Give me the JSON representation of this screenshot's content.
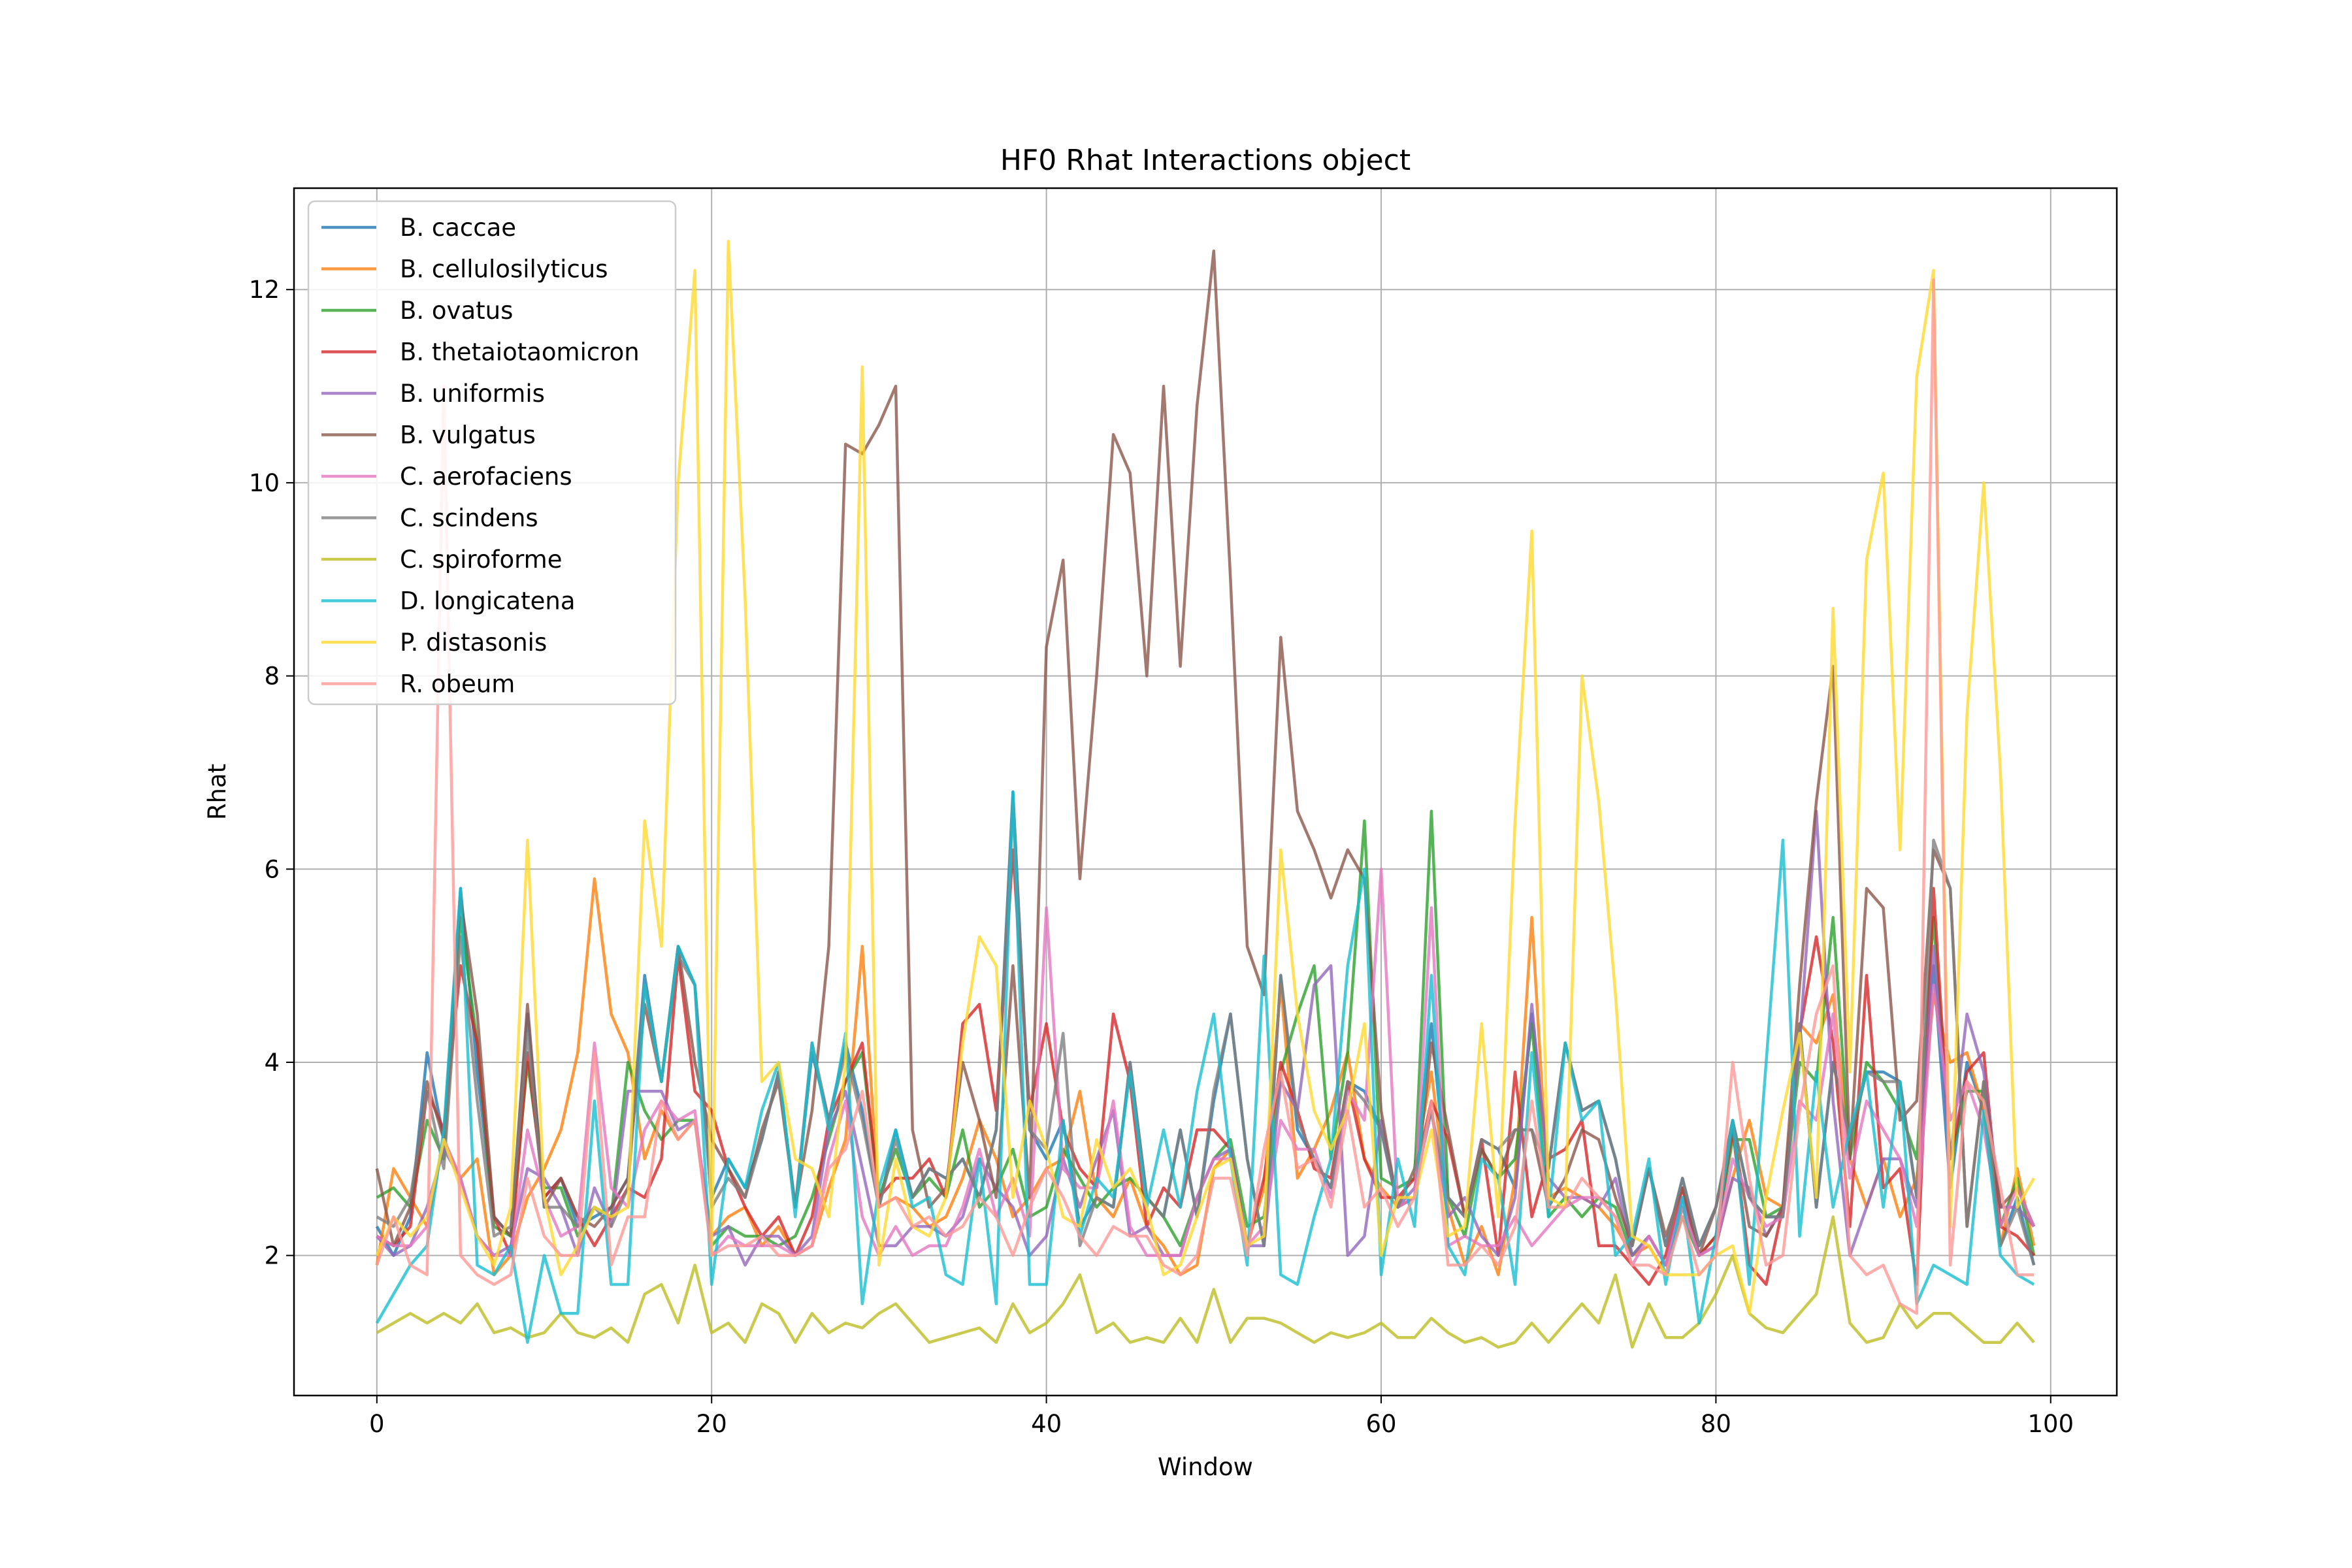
{
  "chart_data": {
    "type": "line",
    "title": "HF0 Rhat Interactions object",
    "xlabel": "Window",
    "ylabel": "Rhat",
    "xlim": [
      -4.95,
      103.95
    ],
    "ylim": [
      0.55,
      13.05
    ],
    "xticks": [
      0,
      20,
      40,
      60,
      80,
      100
    ],
    "yticks": [
      2,
      4,
      6,
      8,
      10,
      12
    ],
    "grid": true,
    "legend_position": "upper-left",
    "series": [
      {
        "name": "B. caccae",
        "color": "#1f77b4",
        "values": [
          2.3,
          2.0,
          2.4,
          4.1,
          3.2,
          5.8,
          3.9,
          2.4,
          2.2,
          4.5,
          2.6,
          2.8,
          2.3,
          2.4,
          2.5,
          2.8,
          4.9,
          3.8,
          5.2,
          4.8,
          2.6,
          3.0,
          2.7,
          3.2,
          3.9,
          2.5,
          4.1,
          3.4,
          4.2,
          3.5,
          2.5,
          3.3,
          2.6,
          2.9,
          2.8,
          3.0,
          2.6,
          3.3,
          6.8,
          3.3,
          3.0,
          3.4,
          2.3,
          2.6,
          2.5,
          4.0,
          2.6,
          2.4,
          3.3,
          2.4,
          3.6,
          4.5,
          3.0,
          2.1,
          4.9,
          3.3,
          3.0,
          2.7,
          3.8,
          3.7,
          3.3,
          2.5,
          2.9,
          4.4,
          2.6,
          2.4,
          3.2,
          3.1,
          2.7,
          4.5,
          2.9,
          4.2,
          3.5,
          3.6,
          3.0,
          2.1,
          2.9,
          2.1,
          2.8,
          2.1,
          2.5,
          3.4,
          2.6,
          2.4,
          2.4,
          4.4,
          2.5,
          4.0,
          3.2,
          3.9,
          3.9,
          3.8,
          2.6,
          5.0,
          2.7,
          4.0,
          3.5,
          2.1,
          2.6,
          1.9
        ]
      },
      {
        "name": "B. cellulosilyticus",
        "color": "#ff7f0e",
        "values": [
          1.9,
          2.9,
          2.6,
          2.3,
          3.2,
          2.8,
          3.0,
          1.8,
          2.0,
          2.6,
          2.9,
          3.3,
          4.1,
          5.9,
          4.5,
          4.1,
          3.0,
          3.5,
          3.2,
          3.4,
          2.2,
          2.4,
          2.5,
          2.1,
          2.3,
          2.0,
          2.1,
          2.7,
          3.2,
          5.2,
          2.5,
          2.6,
          2.5,
          2.3,
          2.4,
          2.8,
          3.4,
          3.0,
          2.4,
          2.6,
          2.9,
          3.0,
          3.7,
          2.6,
          2.4,
          2.8,
          2.3,
          2.1,
          1.8,
          1.9,
          2.9,
          3.1,
          2.1,
          2.7,
          4.8,
          2.8,
          3.1,
          3.5,
          4.1,
          3.0,
          2.7,
          2.5,
          2.9,
          3.9,
          2.5,
          1.9,
          2.3,
          1.8,
          2.8,
          5.5,
          2.6,
          2.7,
          2.6,
          2.5,
          2.3,
          2.0,
          2.1,
          1.8,
          2.5,
          2.0,
          2.1,
          2.8,
          3.4,
          2.6,
          2.5,
          4.4,
          4.2,
          4.7,
          3.0,
          2.5,
          3.0,
          2.4,
          2.8,
          4.7,
          4.0,
          4.1,
          3.5,
          2.1,
          2.9,
          2.1
        ]
      },
      {
        "name": "B. ovatus",
        "color": "#2ca02c",
        "values": [
          2.6,
          2.7,
          2.5,
          3.4,
          3.0,
          5.5,
          4.2,
          2.3,
          2.2,
          4.0,
          2.7,
          2.7,
          2.2,
          2.5,
          2.4,
          4.0,
          3.5,
          3.2,
          3.4,
          3.4,
          2.1,
          2.3,
          2.2,
          2.2,
          2.1,
          2.2,
          2.6,
          3.2,
          3.8,
          4.1,
          2.6,
          3.1,
          2.6,
          2.8,
          2.6,
          3.3,
          2.5,
          2.7,
          3.1,
          2.4,
          2.5,
          3.1,
          2.8,
          2.5,
          2.7,
          2.8,
          2.6,
          2.4,
          2.1,
          2.6,
          3.0,
          3.2,
          2.3,
          2.4,
          3.9,
          4.5,
          5.0,
          3.0,
          4.1,
          6.5,
          2.8,
          2.7,
          2.8,
          6.6,
          2.6,
          2.2,
          3.1,
          2.8,
          3.0,
          4.4,
          2.4,
          2.6,
          2.4,
          2.6,
          2.5,
          2.0,
          2.2,
          1.9,
          2.4,
          2.0,
          2.2,
          3.2,
          3.2,
          2.4,
          2.5,
          4.0,
          3.8,
          5.5,
          3.0,
          4.0,
          3.8,
          3.5,
          3.0,
          5.5,
          3.0,
          3.7,
          3.7,
          2.3,
          2.8,
          2.0
        ]
      },
      {
        "name": "B. thetaiotaomicron",
        "color": "#d62728",
        "values": [
          2.2,
          2.1,
          2.3,
          3.7,
          3.3,
          5.0,
          4.2,
          2.4,
          2.0,
          4.1,
          2.6,
          2.8,
          2.4,
          2.1,
          2.4,
          2.7,
          2.6,
          3.0,
          5.1,
          3.7,
          3.5,
          2.9,
          2.5,
          2.2,
          2.4,
          2.0,
          2.4,
          3.4,
          3.8,
          4.2,
          2.6,
          2.8,
          2.8,
          3.0,
          2.6,
          4.4,
          4.6,
          3.5,
          6.2,
          3.5,
          4.4,
          3.3,
          2.9,
          2.7,
          4.5,
          3.8,
          2.3,
          2.7,
          2.5,
          3.3,
          3.3,
          3.1,
          2.1,
          2.8,
          4.0,
          3.5,
          2.9,
          2.8,
          3.8,
          3.0,
          2.6,
          2.6,
          2.8,
          3.6,
          3.2,
          2.4,
          3.2,
          2.0,
          3.9,
          2.4,
          3.0,
          3.1,
          3.4,
          2.1,
          2.1,
          1.9,
          1.7,
          2.0,
          2.7,
          2.0,
          2.2,
          3.3,
          1.9,
          1.7,
          2.5,
          4.3,
          5.3,
          4.2,
          2.3,
          4.9,
          2.7,
          2.9,
          1.7,
          5.8,
          3.0,
          3.9,
          4.1,
          2.3,
          2.2,
          2.0
        ]
      },
      {
        "name": "B. uniformis",
        "color": "#9467bd",
        "values": [
          2.2,
          2.0,
          2.1,
          2.5,
          3.1,
          2.8,
          2.2,
          2.0,
          2.1,
          2.9,
          2.8,
          2.5,
          2.0,
          2.7,
          2.3,
          3.7,
          3.7,
          3.7,
          3.3,
          3.4,
          2.2,
          2.3,
          1.9,
          2.2,
          2.2,
          2.0,
          2.2,
          3.3,
          3.7,
          2.9,
          2.1,
          2.1,
          2.3,
          2.3,
          2.2,
          2.4,
          3.0,
          2.7,
          2.5,
          2.0,
          2.2,
          3.0,
          2.5,
          3.0,
          3.5,
          2.2,
          2.3,
          2.0,
          2.0,
          2.6,
          3.0,
          3.1,
          2.1,
          2.1,
          3.8,
          3.5,
          4.8,
          5.0,
          2.0,
          2.2,
          3.4,
          2.5,
          2.7,
          3.5,
          2.4,
          2.6,
          2.2,
          2.0,
          2.6,
          4.6,
          2.8,
          2.6,
          2.6,
          2.5,
          2.8,
          2.0,
          2.2,
          1.9,
          2.6,
          2.0,
          2.1,
          2.8,
          2.7,
          2.2,
          2.5,
          4.2,
          6.6,
          3.6,
          2.0,
          2.5,
          3.0,
          3.0,
          2.5,
          5.2,
          3.0,
          4.5,
          3.9,
          2.5,
          2.5,
          2.3
        ]
      },
      {
        "name": "B. vulgatus",
        "color": "#8c564b",
        "values": [
          2.9,
          2.1,
          2.5,
          3.8,
          3.2,
          5.7,
          4.5,
          2.4,
          2.2,
          4.6,
          2.5,
          2.8,
          2.4,
          2.3,
          2.5,
          2.8,
          4.6,
          3.8,
          5.2,
          4.0,
          3.2,
          2.9,
          2.6,
          3.3,
          3.8,
          2.5,
          3.5,
          5.2,
          10.4,
          10.3,
          10.6,
          11.0,
          3.3,
          2.5,
          2.7,
          4.0,
          3.4,
          2.6,
          5.0,
          2.6,
          8.3,
          9.2,
          5.9,
          8.0,
          10.5,
          10.1,
          8.0,
          11.0,
          8.1,
          10.8,
          12.4,
          9.0,
          5.2,
          4.7,
          8.4,
          6.6,
          6.2,
          5.7,
          6.2,
          5.9,
          3.5,
          2.5,
          2.6,
          4.2,
          3.3,
          2.4,
          3.1,
          2.8,
          3.3,
          3.3,
          2.5,
          2.8,
          3.3,
          3.2,
          2.6,
          2.1,
          2.9,
          2.2,
          2.7,
          2.0,
          2.5,
          3.3,
          2.3,
          2.2,
          2.5,
          4.8,
          6.7,
          8.1,
          3.0,
          5.8,
          5.6,
          3.4,
          3.6,
          6.2,
          5.8,
          2.3,
          3.8,
          2.5,
          2.7,
          2.3
        ]
      },
      {
        "name": "C. aerofaciens",
        "color": "#e377c2",
        "values": [
          2.2,
          2.1,
          2.1,
          2.3,
          3.2,
          2.8,
          2.2,
          2.0,
          2.0,
          3.3,
          2.6,
          2.2,
          2.3,
          4.2,
          2.7,
          2.5,
          3.3,
          3.6,
          3.4,
          3.5,
          2.0,
          2.2,
          2.1,
          2.1,
          2.1,
          2.0,
          2.1,
          3.0,
          3.6,
          2.4,
          2.0,
          2.3,
          2.0,
          2.1,
          2.1,
          2.5,
          3.1,
          2.4,
          2.8,
          2.2,
          5.6,
          2.9,
          2.7,
          2.7,
          3.6,
          2.3,
          2.0,
          2.0,
          2.0,
          2.6,
          3.0,
          3.0,
          2.1,
          2.3,
          3.4,
          3.1,
          3.1,
          2.6,
          3.7,
          3.4,
          6.0,
          2.5,
          2.6,
          5.6,
          2.1,
          2.2,
          2.1,
          2.1,
          2.4,
          2.1,
          2.3,
          2.5,
          2.6,
          2.6,
          2.4,
          1.9,
          2.2,
          1.9,
          2.5,
          2.0,
          2.1,
          3.0,
          2.6,
          2.3,
          2.4,
          3.6,
          3.4,
          4.5,
          2.8,
          3.6,
          3.3,
          3.0,
          2.3,
          4.8,
          3.4,
          3.8,
          3.3,
          2.3,
          2.7,
          2.3
        ]
      },
      {
        "name": "C. scindens",
        "color": "#7f7f7f",
        "values": [
          2.4,
          2.3,
          2.6,
          3.7,
          2.9,
          5.3,
          3.6,
          2.2,
          2.3,
          4.3,
          2.5,
          2.5,
          2.3,
          2.5,
          2.3,
          2.7,
          4.8,
          3.8,
          5.1,
          4.8,
          2.5,
          2.8,
          2.6,
          3.2,
          3.9,
          2.5,
          4.2,
          3.4,
          4.1,
          3.4,
          2.5,
          3.2,
          2.6,
          2.9,
          2.8,
          3.0,
          2.6,
          3.3,
          6.7,
          3.3,
          3.1,
          4.3,
          2.1,
          2.6,
          2.5,
          4.0,
          2.6,
          2.4,
          3.3,
          2.4,
          3.7,
          4.5,
          3.0,
          2.1,
          4.9,
          3.4,
          3.0,
          2.7,
          3.8,
          3.6,
          3.3,
          2.5,
          2.9,
          3.5,
          2.6,
          2.4,
          3.2,
          3.1,
          3.3,
          3.3,
          2.9,
          4.2,
          3.5,
          3.6,
          3.0,
          2.1,
          2.9,
          2.1,
          2.8,
          2.1,
          2.5,
          3.4,
          2.6,
          2.4,
          2.4,
          4.4,
          2.5,
          4.0,
          3.2,
          3.9,
          3.8,
          3.8,
          2.6,
          6.3,
          5.8,
          2.3,
          3.8,
          2.1,
          2.5,
          1.9
        ]
      },
      {
        "name": "C. spiroforme",
        "color": "#bcbd22",
        "values": [
          1.2,
          1.3,
          1.4,
          1.3,
          1.4,
          1.3,
          1.5,
          1.2,
          1.25,
          1.15,
          1.2,
          1.4,
          1.2,
          1.15,
          1.25,
          1.1,
          1.6,
          1.7,
          1.3,
          1.9,
          1.2,
          1.3,
          1.1,
          1.5,
          1.4,
          1.1,
          1.4,
          1.2,
          1.3,
          1.25,
          1.4,
          1.5,
          1.3,
          1.1,
          1.15,
          1.2,
          1.25,
          1.1,
          1.5,
          1.2,
          1.3,
          1.5,
          1.8,
          1.2,
          1.3,
          1.1,
          1.15,
          1.1,
          1.35,
          1.1,
          1.65,
          1.1,
          1.35,
          1.35,
          1.3,
          1.2,
          1.1,
          1.2,
          1.15,
          1.2,
          1.3,
          1.15,
          1.15,
          1.35,
          1.2,
          1.1,
          1.15,
          1.05,
          1.1,
          1.3,
          1.1,
          1.3,
          1.5,
          1.3,
          1.8,
          1.05,
          1.5,
          1.15,
          1.15,
          1.3,
          1.6,
          2.0,
          1.4,
          1.25,
          1.2,
          1.4,
          1.6,
          2.4,
          1.3,
          1.1,
          1.15,
          1.5,
          1.25,
          1.4,
          1.4,
          1.25,
          1.1,
          1.1,
          1.3,
          1.1
        ]
      },
      {
        "name": "D. longicatena",
        "color": "#17becf",
        "values": [
          1.3,
          1.6,
          1.9,
          2.1,
          3.3,
          5.8,
          1.9,
          1.8,
          2.1,
          1.1,
          2.0,
          1.4,
          1.4,
          3.6,
          1.7,
          1.7,
          4.8,
          3.8,
          5.2,
          4.8,
          1.7,
          3.0,
          2.7,
          3.5,
          4.0,
          2.4,
          4.2,
          3.3,
          4.3,
          1.5,
          2.7,
          3.3,
          2.5,
          2.6,
          1.8,
          1.7,
          3.0,
          1.5,
          6.8,
          1.7,
          1.7,
          3.4,
          2.2,
          2.8,
          2.6,
          3.9,
          2.5,
          3.3,
          2.5,
          3.7,
          4.5,
          3.0,
          1.9,
          5.1,
          1.8,
          1.7,
          2.4,
          3.0,
          5.0,
          6.0,
          1.8,
          3.0,
          2.3,
          4.9,
          2.1,
          1.8,
          3.0,
          2.8,
          1.7,
          4.1,
          2.4,
          4.2,
          3.4,
          3.6,
          2.0,
          2.2,
          3.0,
          1.7,
          2.6,
          1.3,
          2.2,
          3.4,
          1.7,
          4.0,
          6.3,
          2.2,
          3.9,
          2.5,
          3.3,
          3.9,
          2.5,
          3.8,
          1.5,
          1.9,
          1.8,
          1.7,
          3.5,
          2.0,
          1.8,
          1.7
        ]
      },
      {
        "name": "P. distasonis",
        "color": "#ffd92f",
        "values": [
          2.0,
          2.4,
          2.2,
          2.4,
          3.2,
          2.7,
          2.2,
          1.9,
          2.5,
          6.3,
          2.6,
          1.8,
          2.1,
          2.5,
          2.4,
          2.5,
          6.5,
          5.2,
          10.0,
          12.2,
          2.0,
          12.5,
          8.8,
          3.8,
          4.0,
          3.0,
          2.9,
          2.4,
          4.0,
          11.2,
          1.9,
          3.0,
          2.3,
          2.2,
          2.6,
          4.2,
          5.3,
          5.0,
          2.6,
          3.6,
          3.1,
          2.4,
          2.3,
          3.2,
          2.7,
          2.9,
          2.5,
          1.8,
          1.9,
          2.4,
          2.9,
          3.0,
          2.1,
          2.2,
          6.2,
          4.5,
          3.5,
          3.1,
          3.5,
          4.4,
          2.0,
          2.6,
          2.6,
          3.3,
          2.2,
          2.3,
          4.4,
          2.4,
          6.5,
          9.5,
          2.6,
          2.5,
          8.0,
          6.7,
          4.7,
          2.2,
          2.1,
          1.8,
          1.8,
          1.8,
          2.0,
          2.1,
          1.4,
          2.6,
          3.5,
          4.3,
          2.6,
          8.7,
          3.9,
          9.2,
          10.1,
          6.2,
          11.1,
          12.2,
          2.3,
          7.6,
          10.0,
          7.0,
          2.5,
          2.8
        ]
      },
      {
        "name": "R. obeum",
        "color": "#ff9896",
        "values": [
          1.9,
          2.4,
          1.9,
          1.8,
          11.0,
          2.0,
          1.8,
          1.7,
          1.8,
          2.8,
          2.2,
          2.0,
          2.0,
          4.1,
          1.9,
          2.4,
          2.4,
          3.6,
          3.2,
          3.4,
          2.0,
          2.1,
          2.1,
          2.2,
          2.0,
          2.0,
          2.1,
          2.9,
          3.1,
          3.7,
          2.5,
          2.6,
          2.3,
          2.4,
          2.2,
          2.3,
          2.6,
          2.4,
          2.0,
          2.5,
          2.9,
          2.6,
          2.2,
          2.0,
          2.3,
          2.2,
          2.2,
          1.9,
          1.8,
          2.0,
          2.8,
          2.8,
          2.0,
          3.1,
          3.9,
          2.9,
          3.0,
          2.5,
          3.5,
          2.5,
          2.7,
          2.3,
          2.6,
          3.6,
          1.9,
          1.9,
          2.1,
          1.9,
          2.3,
          3.6,
          2.5,
          2.5,
          2.8,
          2.6,
          2.4,
          1.9,
          1.9,
          1.8,
          2.4,
          1.8,
          2.0,
          4.0,
          2.8,
          1.9,
          2.0,
          3.5,
          4.5,
          5.0,
          2.0,
          1.8,
          1.9,
          1.5,
          1.4,
          12.1,
          1.9,
          3.8,
          3.6,
          2.7,
          1.8,
          1.8
        ]
      }
    ]
  }
}
